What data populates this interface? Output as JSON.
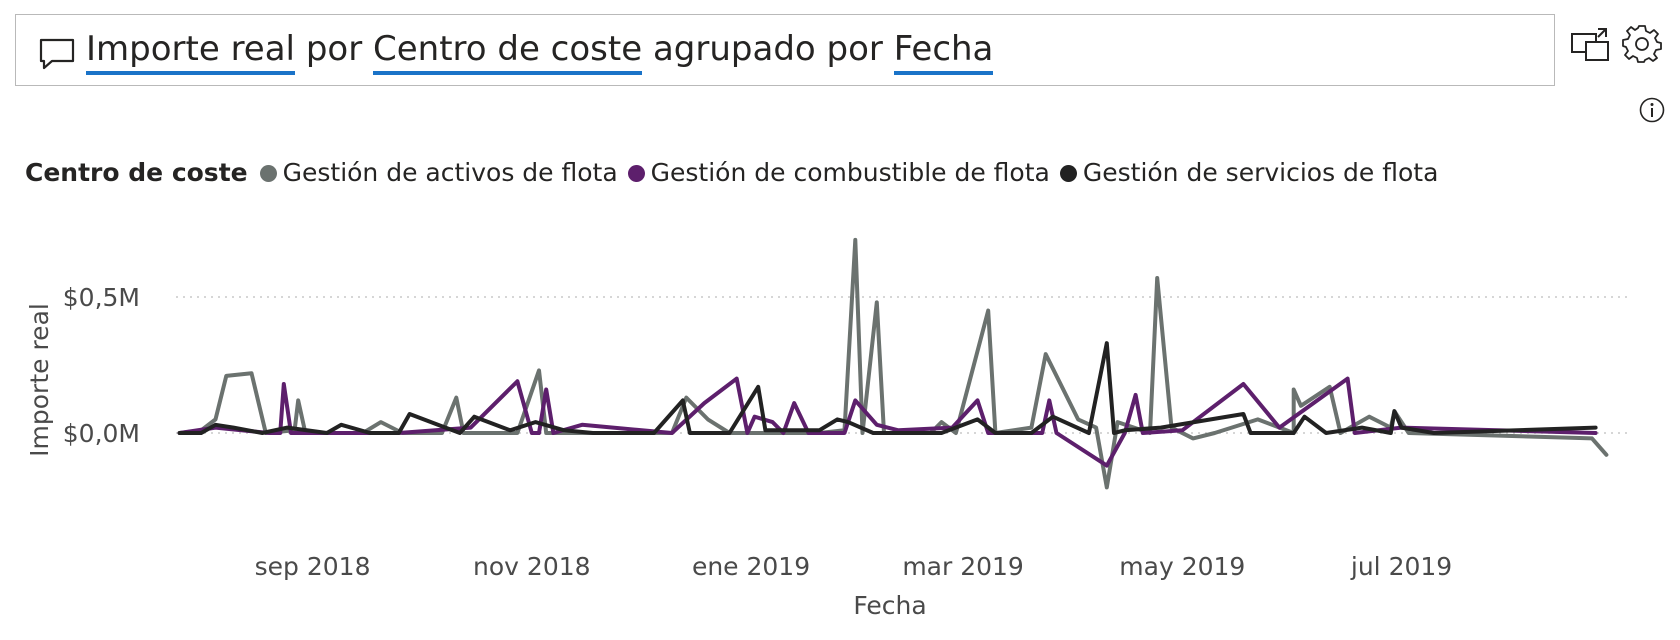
{
  "qa": {
    "measure": "Importe real",
    "word_por": "por",
    "category": "Centro de coste",
    "word_grouped": "agrupado por",
    "group": "Fecha"
  },
  "icons": {
    "comment": "speech-bubble-icon",
    "share": "share-screen-icon",
    "settings": "gear-icon",
    "info": "info-icon"
  },
  "legend": {
    "title": "Centro de coste",
    "items": [
      {
        "label": "Gestión de activos de flota",
        "color": "#6b726f"
      },
      {
        "label": "Gestión de combustible de flota",
        "color": "#5d1f6c"
      },
      {
        "label": "Gestión de servicios de flota",
        "color": "#222222"
      }
    ]
  },
  "chart_data": {
    "type": "line",
    "xlabel": "Fecha",
    "ylabel": "Importe real",
    "x_axis_start": "2018-07-25",
    "x_axis_end": "2019-08-28",
    "x_ticks": [
      {
        "date": "2018-09-01",
        "label": "sep 2018"
      },
      {
        "date": "2018-11-01",
        "label": "nov 2018"
      },
      {
        "date": "2019-01-01",
        "label": "ene 2019"
      },
      {
        "date": "2019-03-01",
        "label": "mar 2019"
      },
      {
        "date": "2019-05-01",
        "label": "may 2019"
      },
      {
        "date": "2019-07-01",
        "label": "jul 2019"
      }
    ],
    "y_ticks": [
      {
        "value": 0.0,
        "label": "$0,0M"
      },
      {
        "value": 0.5,
        "label": "$0,5M"
      }
    ],
    "ylim": [
      -0.3,
      0.8
    ],
    "grid": "horizontal dotted",
    "legend_position": "top",
    "series": [
      {
        "name": "Gestión de activos de flota",
        "color": "#6b726f",
        "points": [
          [
            "2018-07-26",
            0.0
          ],
          [
            "2018-08-01",
            0.01
          ],
          [
            "2018-08-05",
            0.05
          ],
          [
            "2018-08-08",
            0.21
          ],
          [
            "2018-08-15",
            0.22
          ],
          [
            "2018-08-19",
            0.0
          ],
          [
            "2018-08-27",
            0.01
          ],
          [
            "2018-08-28",
            0.12
          ],
          [
            "2018-08-30",
            0.0
          ],
          [
            "2018-09-15",
            0.0
          ],
          [
            "2018-09-20",
            0.04
          ],
          [
            "2018-09-26",
            0.0
          ],
          [
            "2018-10-07",
            0.0
          ],
          [
            "2018-10-11",
            0.13
          ],
          [
            "2018-10-13",
            0.0
          ],
          [
            "2018-10-28",
            0.0
          ],
          [
            "2018-11-03",
            0.23
          ],
          [
            "2018-11-05",
            0.0
          ],
          [
            "2018-11-25",
            0.0
          ],
          [
            "2018-12-10",
            0.0
          ],
          [
            "2018-12-14",
            0.13
          ],
          [
            "2018-12-20",
            0.05
          ],
          [
            "2018-12-26",
            0.0
          ],
          [
            "2019-01-10",
            0.0
          ],
          [
            "2019-01-20",
            0.0
          ],
          [
            "2019-01-27",
            0.01
          ],
          [
            "2019-01-30",
            0.71
          ],
          [
            "2019-02-01",
            0.0
          ],
          [
            "2019-02-05",
            0.48
          ],
          [
            "2019-02-07",
            0.0
          ],
          [
            "2019-02-20",
            0.0
          ],
          [
            "2019-02-23",
            0.04
          ],
          [
            "2019-02-27",
            0.0
          ],
          [
            "2019-03-08",
            0.45
          ],
          [
            "2019-03-10",
            0.0
          ],
          [
            "2019-03-20",
            0.02
          ],
          [
            "2019-03-24",
            0.29
          ],
          [
            "2019-04-02",
            0.05
          ],
          [
            "2019-04-07",
            0.02
          ],
          [
            "2019-04-10",
            -0.2
          ],
          [
            "2019-04-13",
            0.04
          ],
          [
            "2019-04-22",
            0.0
          ],
          [
            "2019-04-24",
            0.57
          ],
          [
            "2019-04-28",
            0.02
          ],
          [
            "2019-05-04",
            -0.02
          ],
          [
            "2019-05-10",
            0.0
          ],
          [
            "2019-05-22",
            0.05
          ],
          [
            "2019-06-01",
            0.0
          ],
          [
            "2019-06-01",
            0.16
          ],
          [
            "2019-06-03",
            0.1
          ],
          [
            "2019-06-11",
            0.17
          ],
          [
            "2019-06-14",
            0.0
          ],
          [
            "2019-06-22",
            0.06
          ],
          [
            "2019-06-28",
            0.02
          ],
          [
            "2019-06-29",
            0.08
          ],
          [
            "2019-07-03",
            0.0
          ],
          [
            "2019-08-23",
            -0.02
          ],
          [
            "2019-08-27",
            -0.08
          ]
        ]
      },
      {
        "name": "Gestión de combustible de flota",
        "color": "#5d1f6c",
        "points": [
          [
            "2018-07-26",
            0.0
          ],
          [
            "2018-08-05",
            0.02
          ],
          [
            "2018-08-20",
            0.0
          ],
          [
            "2018-08-23",
            0.0
          ],
          [
            "2018-08-24",
            0.18
          ],
          [
            "2018-08-26",
            0.0
          ],
          [
            "2018-09-25",
            0.0
          ],
          [
            "2018-10-15",
            0.02
          ],
          [
            "2018-10-28",
            0.19
          ],
          [
            "2018-11-01",
            0.0
          ],
          [
            "2018-11-03",
            0.0
          ],
          [
            "2018-11-05",
            0.16
          ],
          [
            "2018-11-07",
            0.0
          ],
          [
            "2018-11-15",
            0.03
          ],
          [
            "2018-12-10",
            0.0
          ],
          [
            "2018-12-19",
            0.11
          ],
          [
            "2018-12-28",
            0.2
          ],
          [
            "2018-12-31",
            0.0
          ],
          [
            "2019-01-02",
            0.06
          ],
          [
            "2019-01-07",
            0.04
          ],
          [
            "2019-01-10",
            0.0
          ],
          [
            "2019-01-13",
            0.11
          ],
          [
            "2019-01-17",
            0.0
          ],
          [
            "2019-01-27",
            0.0
          ],
          [
            "2019-01-30",
            0.12
          ],
          [
            "2019-02-05",
            0.03
          ],
          [
            "2019-02-11",
            0.01
          ],
          [
            "2019-02-26",
            0.02
          ],
          [
            "2019-03-05",
            0.12
          ],
          [
            "2019-03-08",
            0.0
          ],
          [
            "2019-03-23",
            0.0
          ],
          [
            "2019-03-25",
            0.12
          ],
          [
            "2019-03-27",
            0.0
          ],
          [
            "2019-04-10",
            -0.12
          ],
          [
            "2019-04-15",
            0.0
          ],
          [
            "2019-04-18",
            0.14
          ],
          [
            "2019-04-20",
            0.0
          ],
          [
            "2019-05-01",
            0.01
          ],
          [
            "2019-05-18",
            0.18
          ],
          [
            "2019-05-28",
            0.02
          ],
          [
            "2019-06-16",
            0.2
          ],
          [
            "2019-06-18",
            0.0
          ],
          [
            "2019-07-01",
            0.02
          ],
          [
            "2019-08-24",
            0.0
          ]
        ]
      },
      {
        "name": "Gestión de servicios de flota",
        "color": "#222222",
        "points": [
          [
            "2018-07-26",
            0.0
          ],
          [
            "2018-08-01",
            0.0
          ],
          [
            "2018-08-05",
            0.03
          ],
          [
            "2018-08-10",
            0.02
          ],
          [
            "2018-08-18",
            0.0
          ],
          [
            "2018-08-25",
            0.02
          ],
          [
            "2018-09-05",
            0.0
          ],
          [
            "2018-09-09",
            0.03
          ],
          [
            "2018-09-17",
            0.0
          ],
          [
            "2018-09-25",
            0.0
          ],
          [
            "2018-09-28",
            0.07
          ],
          [
            "2018-10-08",
            0.02
          ],
          [
            "2018-10-12",
            0.0
          ],
          [
            "2018-10-16",
            0.06
          ],
          [
            "2018-10-26",
            0.01
          ],
          [
            "2018-11-02",
            0.04
          ],
          [
            "2018-11-10",
            0.01
          ],
          [
            "2018-11-18",
            0.0
          ],
          [
            "2018-12-05",
            0.0
          ],
          [
            "2018-12-13",
            0.12
          ],
          [
            "2018-12-15",
            0.0
          ],
          [
            "2018-12-26",
            0.0
          ],
          [
            "2019-01-03",
            0.17
          ],
          [
            "2019-01-05",
            0.01
          ],
          [
            "2019-01-20",
            0.01
          ],
          [
            "2019-01-25",
            0.05
          ],
          [
            "2019-01-28",
            0.04
          ],
          [
            "2019-02-04",
            0.0
          ],
          [
            "2019-02-20",
            0.0
          ],
          [
            "2019-02-23",
            0.0
          ],
          [
            "2019-03-05",
            0.05
          ],
          [
            "2019-03-10",
            0.0
          ],
          [
            "2019-03-20",
            0.0
          ],
          [
            "2019-03-26",
            0.06
          ],
          [
            "2019-04-05",
            0.0
          ],
          [
            "2019-04-10",
            0.33
          ],
          [
            "2019-04-12",
            0.0
          ],
          [
            "2019-04-15",
            0.01
          ],
          [
            "2019-04-25",
            0.02
          ],
          [
            "2019-05-18",
            0.07
          ],
          [
            "2019-05-20",
            0.0
          ],
          [
            "2019-06-01",
            0.0
          ],
          [
            "2019-06-04",
            0.06
          ],
          [
            "2019-06-10",
            0.0
          ],
          [
            "2019-06-20",
            0.02
          ],
          [
            "2019-06-28",
            0.0
          ],
          [
            "2019-06-29",
            0.08
          ],
          [
            "2019-07-01",
            0.02
          ],
          [
            "2019-07-10",
            0.0
          ],
          [
            "2019-08-24",
            0.02
          ]
        ]
      }
    ]
  }
}
